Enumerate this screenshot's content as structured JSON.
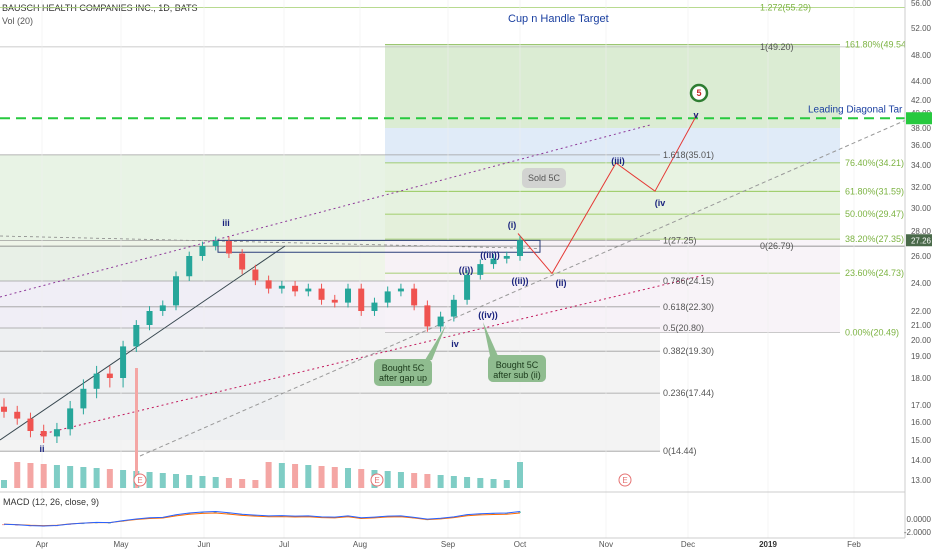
{
  "header": {
    "symbol_title": "BAUSCH HEALTH COMPANIES INC., 1D, BATS",
    "volume_label": "Vol (20)",
    "macd_label": "MACD (12, 26, close, 9)"
  },
  "chart_data": {
    "type": "candlestick",
    "title": "Cup n Handle Target",
    "price_axis_ticks": [
      "56.00",
      "52.00",
      "48.00",
      "44.00",
      "42.00",
      "40.00",
      "38.00",
      "36.00",
      "34.00",
      "32.00",
      "30.00",
      "28.00",
      "26.00",
      "24.00",
      "22.00",
      "21.00",
      "20.00",
      "19.00",
      "18.00",
      "17.00",
      "16.00",
      "15.00",
      "14.00",
      "13.00"
    ],
    "last_price_tag": "27.26",
    "macd_axis_ticks": [
      "0.0000",
      "-2.0000"
    ],
    "x_axis_ticks": [
      "Apr",
      "May",
      "Jun",
      "Jul",
      "Aug",
      "Sep",
      "Oct",
      "Nov",
      "Dec",
      "2019",
      "Feb"
    ],
    "close_path": [
      [
        "Apr",
        16.6
      ],
      [
        "Apr",
        16.2
      ],
      [
        "Apr",
        15.5
      ],
      [
        "Apr",
        15.2
      ],
      [
        "Apr",
        15.6
      ],
      [
        "May",
        16.8
      ],
      [
        "May",
        17.6
      ],
      [
        "May",
        18.2
      ],
      [
        "May",
        18.0
      ],
      [
        "May",
        19.6
      ],
      [
        "May",
        21.0
      ],
      [
        "Jun",
        22.0
      ],
      [
        "Jun",
        22.4
      ],
      [
        "Jun",
        24.5
      ],
      [
        "Jun",
        26.0
      ],
      [
        "Jun",
        26.8
      ],
      [
        "Jun",
        27.2
      ],
      [
        "Jun",
        26.2
      ],
      [
        "Jun",
        25.0
      ],
      [
        "Jul",
        24.2
      ],
      [
        "Jul",
        23.6
      ],
      [
        "Jul",
        23.8
      ],
      [
        "Jul",
        23.4
      ],
      [
        "Jul",
        23.6
      ],
      [
        "Aug",
        22.8
      ],
      [
        "Aug",
        22.6
      ],
      [
        "Aug",
        23.6
      ],
      [
        "Aug",
        22.0
      ],
      [
        "Aug",
        22.6
      ],
      [
        "Aug",
        23.4
      ],
      [
        "Aug",
        23.6
      ],
      [
        "Sep",
        22.4
      ],
      [
        "Sep",
        20.9
      ],
      [
        "Sep",
        21.6
      ],
      [
        "Sep",
        22.8
      ],
      [
        "Sep",
        24.6
      ],
      [
        "Sep",
        25.4
      ],
      [
        "Sep",
        25.8
      ],
      [
        "Oct",
        26.0
      ],
      [
        "Oct",
        27.26
      ]
    ],
    "fib_left_labels": [
      "1.272(55.29)",
      "1(49.20)",
      "1.618(35.01)",
      "1(27.25)",
      "0.786(24.15)",
      "0.618(22.30)",
      "0.5(20.80)",
      "0.382(19.30)",
      "0.236(17.44)",
      "0(14.44)"
    ],
    "fib_right_labels": [
      "161.80%(49.54)",
      "76.40%(34.21)",
      "61.80%(31.59)",
      "50.00%(29.47)",
      "38.20%(27.35)",
      "0(26.79)",
      "23.60%(24.73)",
      "0.00%(20.49)"
    ],
    "annotations": {
      "leading_diagonal": "Leading Diagonal Tar",
      "sold_callout": "Sold 5C",
      "bought_gap_callout": [
        "Bought 5C",
        "after gap up"
      ],
      "bought_sub_callout": [
        "Bought 5C",
        "after sub (ii)"
      ],
      "wave_labels": [
        "ii",
        "iii",
        "iv",
        "(i)",
        "(ii)",
        "(iii)",
        "(iv",
        "v",
        "5",
        "((i))",
        "((ii))",
        "((iii))",
        "((iv))"
      ],
      "earnings_markers": [
        "E",
        "E",
        "E"
      ]
    },
    "colors": {
      "up_candle": "#26a69a",
      "down_candle": "#ef5350",
      "target_dash": "#27c93f",
      "projection": "#e53935",
      "fib_green": "#7cb342",
      "wave_blue": "#1a237e",
      "macd_line": "#2962ff",
      "signal_line": "#ff6d00",
      "callout_green": "#8fbc8f",
      "callout_gray": "#cfcfcf"
    }
  }
}
